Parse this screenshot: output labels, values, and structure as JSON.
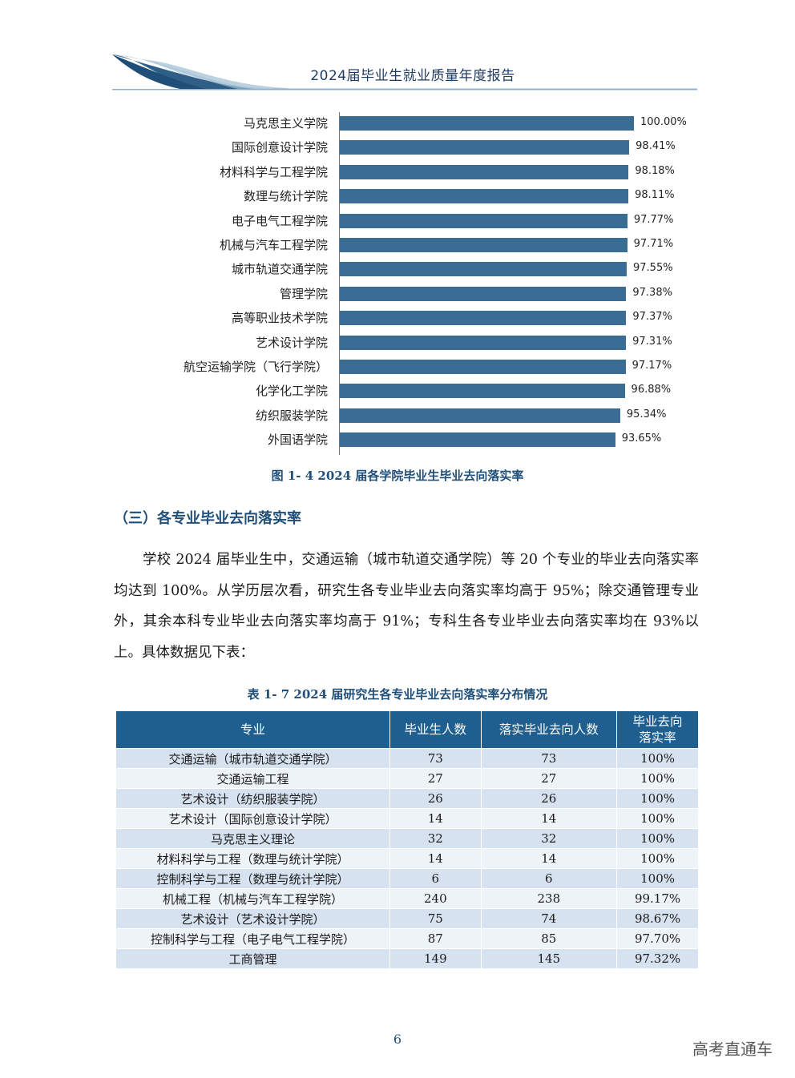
{
  "header": {
    "title": "2024届毕业生就业质量年度报告"
  },
  "chart_data": {
    "type": "bar",
    "orientation": "horizontal",
    "title": "图 1- 4 2024 届各学院毕业生毕业去向落实率",
    "categories": [
      "马克思主义学院",
      "国际创意设计学院",
      "材料科学与工程学院",
      "数理与统计学院",
      "电子电气工程学院",
      "机械与汽车工程学院",
      "城市轨道交通学院",
      "管理学院",
      "高等职业技术学院",
      "艺术设计学院",
      "航空运输学院（飞行学院）",
      "化学化工学院",
      "纺织服装学院",
      "外国语学院"
    ],
    "values": [
      100.0,
      98.41,
      98.18,
      98.11,
      97.77,
      97.71,
      97.55,
      97.38,
      97.37,
      97.31,
      97.17,
      96.88,
      95.34,
      93.65
    ],
    "value_labels": [
      "100.00%",
      "98.41%",
      "98.18%",
      "98.11%",
      "97.77%",
      "97.71%",
      "97.55%",
      "97.38%",
      "97.37%",
      "97.31%",
      "97.17%",
      "96.88%",
      "95.34%",
      "93.65%"
    ],
    "xlim": [
      0,
      100
    ],
    "xlabel": "",
    "ylabel": "",
    "color": "#3a6d94"
  },
  "section": {
    "heading": "（三）各专业毕业去向落实率",
    "paragraph": "学校 2024 届毕业生中，交通运输（城市轨道交通学院）等 20 个专业的毕业去向落实率均达到 100%。从学历层次看，研究生各专业毕业去向落实率均高于 95%；除交通管理专业外，其余本科专业毕业去向落实率均高于 91%；专科生各专业毕业去向落实率均在 93%以上。具体数据见下表："
  },
  "table": {
    "caption": "表 1- 7 2024 届研究生各专业毕业去向落实率分布情况",
    "headers": [
      "专业",
      "毕业生人数",
      "落实毕业去向人数",
      "毕业去向落实率"
    ],
    "rows": [
      [
        "交通运输（城市轨道交通学院）",
        "73",
        "73",
        "100%"
      ],
      [
        "交通运输工程",
        "27",
        "27",
        "100%"
      ],
      [
        "艺术设计（纺织服装学院）",
        "26",
        "26",
        "100%"
      ],
      [
        "艺术设计（国际创意设计学院）",
        "14",
        "14",
        "100%"
      ],
      [
        "马克思主义理论",
        "32",
        "32",
        "100%"
      ],
      [
        "材料科学与工程（数理与统计学院）",
        "14",
        "14",
        "100%"
      ],
      [
        "控制科学与工程（数理与统计学院）",
        "6",
        "6",
        "100%"
      ],
      [
        "机械工程（机械与汽车工程学院）",
        "240",
        "238",
        "99.17%"
      ],
      [
        "艺术设计（艺术设计学院）",
        "75",
        "74",
        "98.67%"
      ],
      [
        "控制科学与工程（电子电气工程学院）",
        "87",
        "85",
        "97.70%"
      ],
      [
        "工商管理",
        "149",
        "145",
        "97.32%"
      ]
    ]
  },
  "footer": {
    "page_number": "6",
    "watermark": "高考直通车"
  },
  "colors": {
    "accent": "#1f5f8f",
    "bar": "#3a6d94",
    "row_odd": "#d6e2ef",
    "row_even": "#eef3f8"
  }
}
